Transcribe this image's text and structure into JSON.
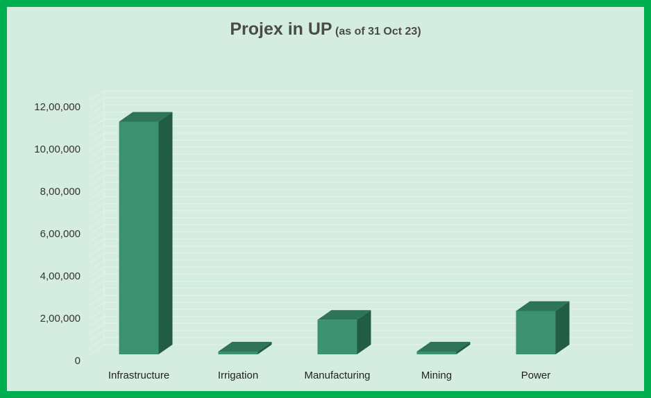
{
  "chart_data": {
    "type": "bar",
    "title": "Projex in UP",
    "subtitle": "(as of 31 Oct 23)",
    "categories": [
      "Infrastructure",
      "Irrigation",
      "Manufacturing",
      "Mining",
      "Power"
    ],
    "values": [
      1100000,
      12000,
      163000,
      5000,
      205000
    ],
    "ylim": [
      0,
      1200000
    ],
    "yticks": [
      0,
      200000,
      400000,
      600000,
      800000,
      1000000,
      1200000
    ],
    "ytick_labels": [
      "0",
      "2,00,000",
      "4,00,000",
      "6,00,000",
      "8,00,000",
      "10,00,000",
      "12,00,000"
    ],
    "grid": true,
    "legend": "none",
    "style": "3d",
    "colors": {
      "bar_front": "#3c9170",
      "bar_side": "#235c45",
      "bar_top": "#2e7456",
      "border": "#00b050",
      "background": "#d5ede0"
    }
  }
}
